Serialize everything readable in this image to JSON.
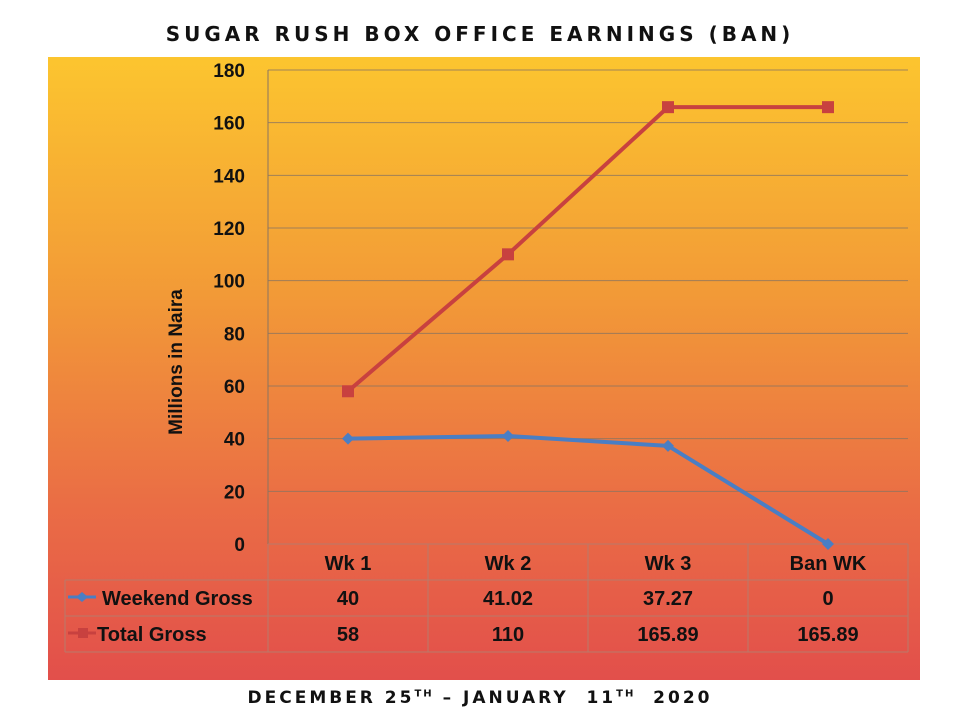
{
  "title": "SUGAR RUSH BOX OFFICE EARNINGS (BAN)",
  "footer": {
    "part1": "DECEMBER 25",
    "sup1": "TH",
    "part2": " – JANUARY  11",
    "sup2": "TH",
    "part3": "  2020"
  },
  "chart_data": {
    "type": "line",
    "ylabel": "Millions in Naira",
    "ylim": [
      0,
      180
    ],
    "yticks": [
      0,
      20,
      40,
      60,
      80,
      100,
      120,
      140,
      160,
      180
    ],
    "categories": [
      "Wk 1",
      "Wk 2",
      "Wk 3",
      "Ban WK"
    ],
    "grid": true,
    "data_table": true,
    "series": [
      {
        "name": "Weekend Gross",
        "values": [
          40,
          41.02,
          37.27,
          0
        ],
        "labels": [
          "40",
          "41.02",
          "37.27",
          "0"
        ],
        "color": "#4a7ec4",
        "marker": "diamond"
      },
      {
        "name": "Total Gross",
        "values": [
          58,
          110,
          165.89,
          165.89
        ],
        "labels": [
          "58",
          "110",
          "165.89",
          "165.89"
        ],
        "color": "#c8413f",
        "marker": "square"
      }
    ]
  }
}
